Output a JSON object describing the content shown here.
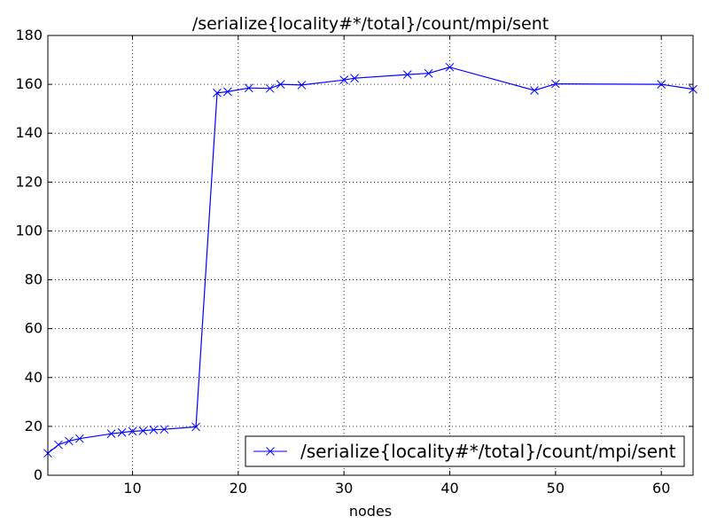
{
  "chart_data": {
    "type": "line",
    "title": "/serialize{locality#*/total}/count/mpi/sent",
    "xlabel": "nodes",
    "ylabel": "",
    "xlim": [
      2,
      63
    ],
    "ylim": [
      0,
      180
    ],
    "xticks": [
      10,
      20,
      30,
      40,
      50,
      60
    ],
    "yticks": [
      0,
      20,
      40,
      60,
      80,
      100,
      120,
      140,
      160,
      180
    ],
    "grid": true,
    "legend_position": "lower-right",
    "series": [
      {
        "name": "/serialize{locality#*/total}/count/mpi/sent",
        "color": "#0000ff",
        "marker": "x",
        "x": [
          2,
          3,
          4,
          5,
          8,
          9,
          10,
          11,
          12,
          13,
          16,
          18,
          19,
          21,
          23,
          24,
          26,
          30,
          31,
          36,
          38,
          40,
          48,
          50,
          60,
          63
        ],
        "y": [
          9,
          12.5,
          14,
          15,
          17,
          17.5,
          18,
          18.2,
          18.6,
          18.8,
          19.8,
          156.5,
          157,
          158.5,
          158.3,
          160,
          159.7,
          161.8,
          162.5,
          164,
          164.5,
          167,
          157.5,
          160.2,
          160,
          158
        ]
      }
    ]
  }
}
